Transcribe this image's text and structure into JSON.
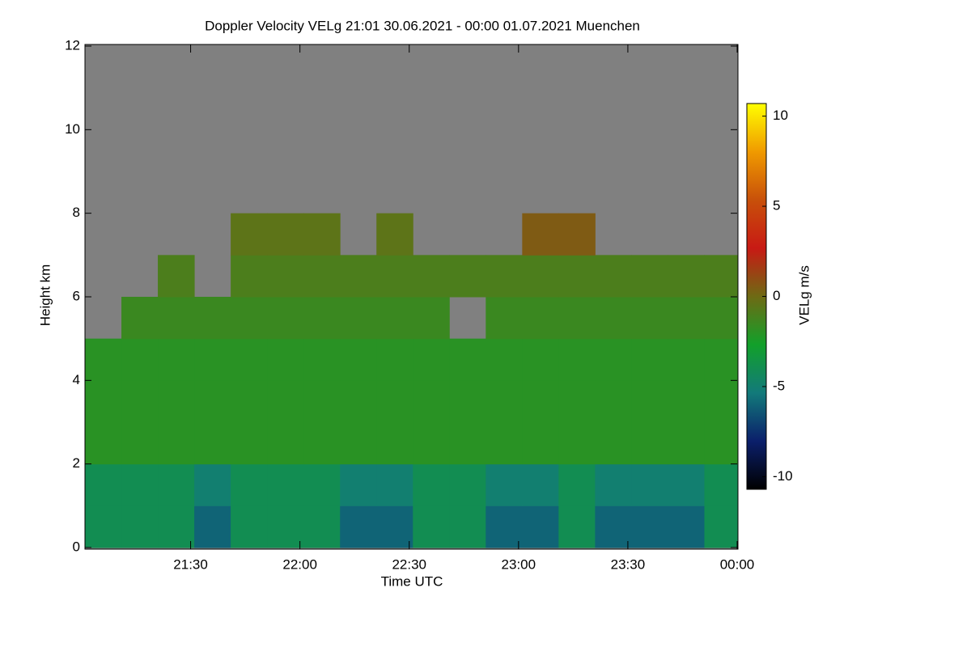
{
  "chart_data": {
    "type": "heatmap",
    "title": "Doppler Velocity VELg   21:01 30.06.2021 - 00:00 01.07.2021 Muenchen",
    "xlabel": "Time UTC",
    "ylabel": "Height km",
    "colorbar_label": "VELg m/s",
    "xlim": [
      1261,
      1440
    ],
    "xticks": [
      {
        "value": 1290,
        "label": "21:30"
      },
      {
        "value": 1320,
        "label": "22:00"
      },
      {
        "value": 1350,
        "label": "22:30"
      },
      {
        "value": 1380,
        "label": "23:00"
      },
      {
        "value": 1410,
        "label": "23:30"
      },
      {
        "value": 1440,
        "label": "00:00"
      }
    ],
    "ylim": [
      0,
      12
    ],
    "yticks": [
      0,
      2,
      4,
      6,
      8,
      10,
      12
    ],
    "clim": [
      -10.7,
      10.7
    ],
    "cticks": [
      -10,
      -5,
      0,
      5,
      10
    ],
    "colormap": [
      "#000000",
      "#0b1f6b",
      "#127a7a",
      "#12a02a",
      "#6e6a14",
      "#c81a14",
      "#c8500a",
      "#f09a00",
      "#ffff00"
    ],
    "nodata_color": "#808080",
    "x_bins": [
      1261,
      1271,
      1281,
      1291,
      1301,
      1311,
      1321,
      1331,
      1341,
      1351,
      1361,
      1371,
      1381,
      1391,
      1401,
      1411,
      1421,
      1431,
      1440
    ],
    "y_bins": [
      0,
      1,
      2,
      3,
      4,
      5,
      6,
      7,
      8,
      9,
      10,
      11,
      12
    ],
    "z": [
      [
        -4,
        -4,
        -4,
        -6,
        -4,
        -4,
        -4,
        -6,
        -6,
        -4,
        -4,
        -6,
        -6,
        -4,
        -6,
        -6,
        -6,
        -4
      ],
      [
        -4,
        -4,
        -4,
        -5,
        -4,
        -4,
        -4,
        -5,
        -5,
        -4,
        -4,
        -5,
        -5,
        -4,
        -5,
        -5,
        -5,
        -4
      ],
      [
        -2,
        -2,
        -2,
        -2,
        -2,
        -2,
        -2,
        -2,
        -2,
        -2,
        -2,
        -2,
        -2,
        -2,
        -2,
        -2,
        -2,
        -2
      ],
      [
        -2,
        -2,
        -2,
        -2,
        -2,
        -2,
        -2,
        -2,
        -2,
        -2,
        -2,
        -2,
        -2,
        -2,
        -2,
        -2,
        -2,
        -2
      ],
      [
        -2,
        -2,
        -2,
        -2,
        -2,
        -2,
        -2,
        -2,
        -2,
        -2,
        -2,
        -2,
        -2,
        -2,
        -2,
        -2,
        -2,
        -2
      ],
      [
        null,
        -1.5,
        -1.5,
        -1.5,
        -1.5,
        -1.5,
        -1.5,
        -1.5,
        -1.5,
        -1.5,
        null,
        -1.5,
        -1.5,
        -1.5,
        -1.5,
        -1.5,
        -1.5,
        -1.5
      ],
      [
        null,
        null,
        -1,
        null,
        -1,
        -1,
        -1,
        -1,
        -1,
        -1,
        -1,
        -1,
        -1,
        -1,
        -1,
        -1,
        -1,
        -1
      ],
      [
        null,
        null,
        null,
        null,
        -0.5,
        -0.5,
        -0.5,
        null,
        -0.5,
        null,
        null,
        null,
        0.5,
        0.5,
        null,
        null,
        null,
        null
      ],
      [
        null,
        null,
        null,
        null,
        null,
        null,
        null,
        null,
        null,
        null,
        null,
        null,
        null,
        null,
        null,
        null,
        null,
        null
      ],
      [
        null,
        null,
        null,
        null,
        null,
        null,
        null,
        null,
        null,
        null,
        null,
        null,
        null,
        null,
        null,
        null,
        null,
        null
      ],
      [
        null,
        null,
        null,
        null,
        null,
        null,
        null,
        null,
        null,
        null,
        null,
        null,
        null,
        null,
        null,
        null,
        null,
        null
      ],
      [
        null,
        null,
        null,
        null,
        null,
        null,
        null,
        null,
        null,
        null,
        null,
        null,
        null,
        null,
        null,
        null,
        null,
        null
      ]
    ]
  }
}
